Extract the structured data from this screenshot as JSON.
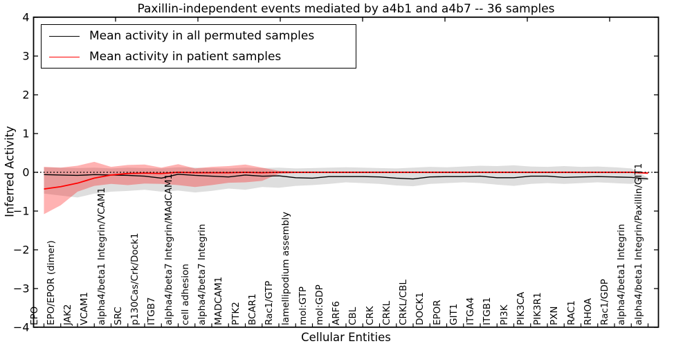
{
  "chart_data": {
    "type": "line",
    "title": "Paxillin-independent events mediated by a4b1 and a4b7 -- 36 samples",
    "xlabel": "Cellular Entities",
    "ylabel": "Inferred Activity",
    "ylim": [
      -4,
      4
    ],
    "ytick_values": [
      4,
      3,
      2,
      1,
      0,
      -1,
      -2,
      -3,
      -4
    ],
    "ytick_labels": [
      "4",
      "3",
      "2",
      "1",
      "0",
      "−1",
      "−2",
      "−3",
      "−4"
    ],
    "grid": false,
    "legend_position": "upper left",
    "zero_line": {
      "value": 0,
      "style": "dotted",
      "color": "#000000"
    },
    "categories": [
      "EPO",
      "EPO/EPOR (dimer)",
      "JAK2",
      "VCAM1",
      "alpha4/beta1 Integrin/VCAM1",
      "SRC",
      "p130Cas/Crk/Dock1",
      "ITGB7",
      "alpha4/beta7 Integrin/MAdCAM1",
      "cell adhesion",
      "alpha4/beta7 Integrin",
      "MADCAM1",
      "PTK2",
      "BCAR1",
      "Rac1/GTP",
      "lamellipodium assembly",
      "mol:GTP",
      "mol:GDP",
      "ARF6",
      "CBL",
      "CRK",
      "CRKL",
      "CRKL/CBL",
      "DOCK1",
      "EPOR",
      "GIT1",
      "ITGA4",
      "ITGB1",
      "PI3K",
      "PIK3CA",
      "PIK3R1",
      "PXN",
      "RAC1",
      "RHOA",
      "Rac1/GDP",
      "alpha4/beta1 Integrin",
      "alpha4/beta1 Integrin/Paxillin/GIT1"
    ],
    "series": [
      {
        "name": "Mean activity in all permuted samples",
        "color": "#000000",
        "line_width": 1.4,
        "values": [
          -0.06,
          -0.07,
          -0.08,
          -0.06,
          -0.07,
          -0.08,
          -0.1,
          -0.15,
          -0.05,
          -0.08,
          -0.1,
          -0.12,
          -0.07,
          -0.1,
          -0.09,
          -0.14,
          -0.15,
          -0.11,
          -0.11,
          -0.11,
          -0.12,
          -0.15,
          -0.17,
          -0.12,
          -0.11,
          -0.11,
          -0.1,
          -0.14,
          -0.14,
          -0.1,
          -0.1,
          -0.13,
          -0.12,
          -0.11,
          -0.12,
          -0.13,
          -0.17
        ],
        "band": {
          "color": "rgba(0,0,0,0.13)",
          "high": [
            0.13,
            0.12,
            0.11,
            0.12,
            0.1,
            0.12,
            0.11,
            0.1,
            0.13,
            0.12,
            0.11,
            0.1,
            0.12,
            0.11,
            0.12,
            0.1,
            0.11,
            0.12,
            0.13,
            0.12,
            0.11,
            0.1,
            0.12,
            0.14,
            0.13,
            0.15,
            0.17,
            0.16,
            0.18,
            0.15,
            0.14,
            0.16,
            0.14,
            0.15,
            0.13,
            0.1,
            -0.14
          ],
          "low": [
            -0.55,
            -0.6,
            -0.65,
            -0.55,
            -0.5,
            -0.48,
            -0.45,
            -0.5,
            -0.47,
            -0.52,
            -0.48,
            -0.42,
            -0.45,
            -0.38,
            -0.4,
            -0.35,
            -0.33,
            -0.3,
            -0.26,
            -0.28,
            -0.3,
            -0.34,
            -0.36,
            -0.3,
            -0.28,
            -0.26,
            -0.28,
            -0.32,
            -0.35,
            -0.3,
            -0.28,
            -0.3,
            -0.28,
            -0.26,
            -0.28,
            -0.3,
            -0.19
          ]
        }
      },
      {
        "name": "Mean activity in patient samples",
        "color": "#ff0000",
        "line_width": 1.8,
        "values": [
          -0.43,
          -0.37,
          -0.28,
          -0.15,
          -0.07,
          -0.03,
          -0.02,
          -0.03,
          0.0,
          -0.01,
          -0.01,
          -0.01,
          0.0,
          -0.01,
          0.0,
          0.0,
          0.0,
          0.0,
          0.0,
          0.0,
          0.0,
          0.0,
          0.0,
          0.0,
          0.0,
          0.0,
          0.0,
          0.0,
          0.0,
          0.0,
          0.0,
          0.0,
          0.0,
          0.0,
          0.0,
          0.0,
          -0.02
        ],
        "band": {
          "color": "rgba(255,0,0,0.30)",
          "high": [
            0.14,
            0.12,
            0.17,
            0.27,
            0.14,
            0.19,
            0.2,
            0.12,
            0.21,
            0.1,
            0.14,
            0.16,
            0.2,
            0.12,
            0.04,
            0.02,
            0.02,
            0.02,
            0.02,
            0.02,
            0.02,
            0.02,
            0.02,
            0.02,
            0.02,
            0.02,
            0.02,
            0.02,
            0.02,
            0.02,
            0.02,
            0.02,
            0.02,
            0.02,
            0.02,
            0.02,
            0.01
          ],
          "low": [
            -1.08,
            -0.85,
            -0.5,
            -0.35,
            -0.3,
            -0.33,
            -0.29,
            -0.3,
            -0.33,
            -0.38,
            -0.33,
            -0.27,
            -0.26,
            -0.22,
            -0.04,
            -0.02,
            -0.02,
            -0.02,
            -0.02,
            -0.02,
            -0.02,
            -0.02,
            -0.02,
            -0.02,
            -0.02,
            -0.02,
            -0.02,
            -0.02,
            -0.02,
            -0.02,
            -0.02,
            -0.02,
            -0.02,
            -0.02,
            -0.02,
            -0.02,
            -0.05
          ]
        }
      }
    ]
  }
}
